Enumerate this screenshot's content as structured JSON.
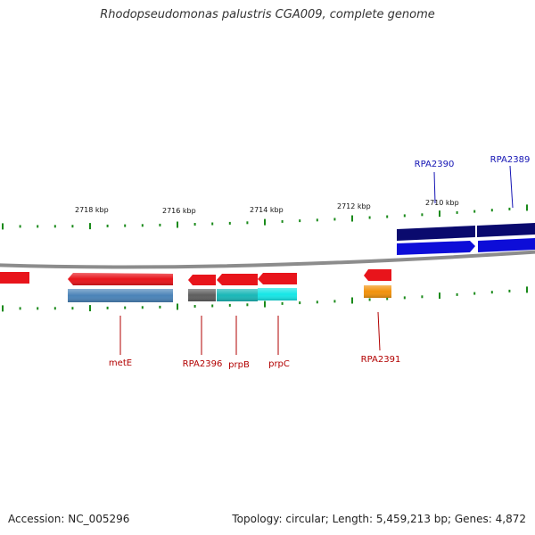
{
  "title": "Rhodopseudomonas palustris CGA009, complete genome",
  "footer": {
    "accession": "Accession: NC_005296",
    "summary": "Topology: circular; Length: 5,459,213 bp; Genes: 4,872"
  },
  "axis": {
    "tick_labels": [
      "2718 kbp",
      "2716 kbp",
      "2714 kbp",
      "2712 kbp",
      "2710 kbp"
    ]
  },
  "genes": [
    {
      "label": "metE",
      "strand": "reverse",
      "color": "#e8141b",
      "cds_color": "#4a83b8"
    },
    {
      "label": "RPA2396",
      "strand": "reverse",
      "color": "#e8141b",
      "cds_color": "#5e5e5e"
    },
    {
      "label": "prpB",
      "strand": "reverse",
      "color": "#e8141b",
      "cds_color": "#1ab7b7"
    },
    {
      "label": "prpC",
      "strand": "reverse",
      "color": "#e8141b",
      "cds_color": "#16e6e6"
    },
    {
      "label": "RPA2391",
      "strand": "reverse",
      "color": "#e8141b",
      "cds_color": "#f2920b"
    },
    {
      "label": "RPA2390",
      "strand": "forward",
      "color": "#0d0dd8",
      "cds_color": "#0a0a6e"
    },
    {
      "label": "RPA2389",
      "strand": "forward",
      "color": "#0d0dd8",
      "cds_color": "#0a0a6e"
    }
  ],
  "colors": {
    "reverse_label": "#b20000",
    "forward_label": "#1414b4",
    "tick": "#1a8a1a",
    "backbone": "#8c8c8c"
  }
}
